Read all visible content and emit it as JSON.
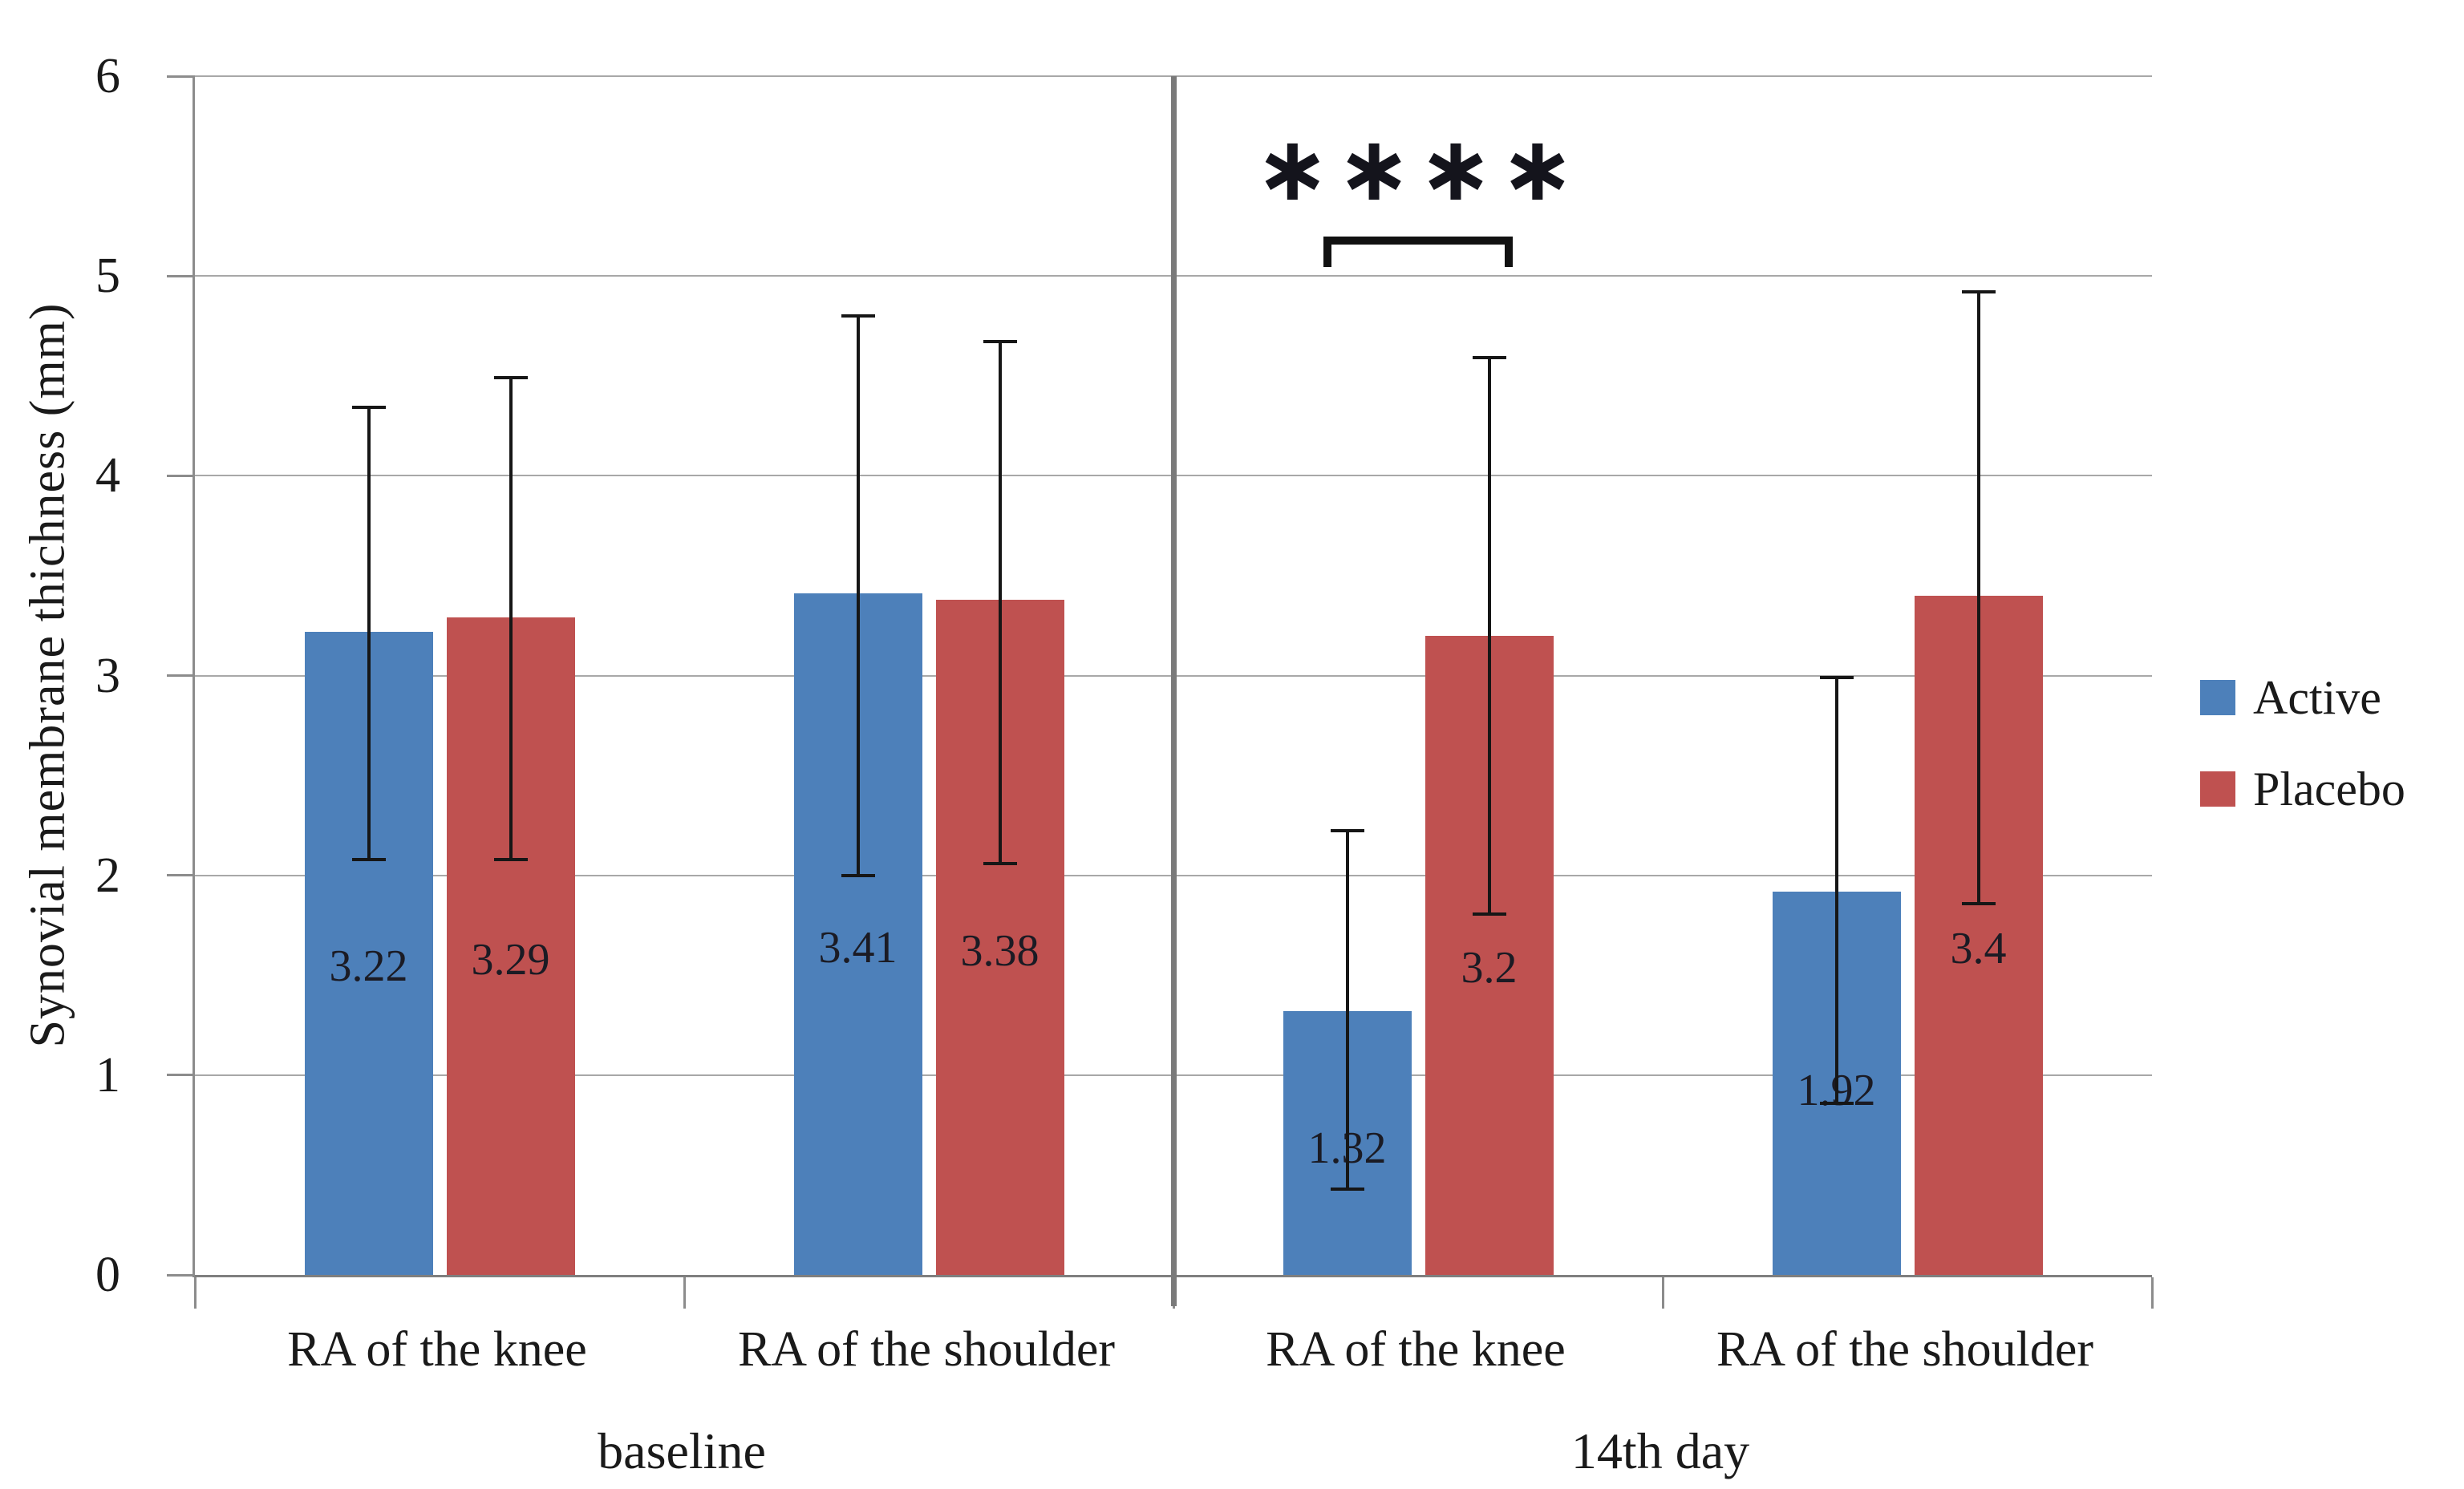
{
  "chart_data": {
    "type": "bar",
    "title": "",
    "ylabel": "Synovial membrane thichness (mm)",
    "xlabel": "",
    "ylim": [
      0,
      6
    ],
    "yticks": [
      0,
      1,
      2,
      3,
      4,
      5,
      6
    ],
    "grid": true,
    "legend_position": "right",
    "panel_divider": true,
    "series": [
      {
        "name": "Active",
        "color": "#4d80ba"
      },
      {
        "name": "Placebo",
        "color": "#bf5150"
      }
    ],
    "panels": [
      {
        "label": "baseline"
      },
      {
        "label": "14th day"
      }
    ],
    "groups": [
      {
        "panel": "baseline",
        "category": "RA of the knee",
        "bars": [
          {
            "series": "Active",
            "value": 3.22,
            "label": "3.22",
            "err_up": 1.13,
            "err_down": 1.15
          },
          {
            "series": "Placebo",
            "value": 3.29,
            "label": "3.29",
            "err_up": 1.21,
            "err_down": 1.22
          }
        ]
      },
      {
        "panel": "baseline",
        "category": "RA of the shoulder",
        "bars": [
          {
            "series": "Active",
            "value": 3.41,
            "label": "3.41",
            "err_up": 1.4,
            "err_down": 1.42
          },
          {
            "series": "Placebo",
            "value": 3.38,
            "label": "3.38",
            "err_up": 1.3,
            "err_down": 1.33
          }
        ]
      },
      {
        "panel": "14th day",
        "category": "RA of the knee",
        "bars": [
          {
            "series": "Active",
            "value": 1.32,
            "label": "1.32",
            "err_up": 0.91,
            "err_down": 0.9
          },
          {
            "series": "Placebo",
            "value": 3.2,
            "label": "3.2",
            "err_up": 1.4,
            "err_down": 1.4
          }
        ]
      },
      {
        "panel": "14th day",
        "category": "RA of the shoulder",
        "bars": [
          {
            "series": "Active",
            "value": 1.92,
            "label": "1.92",
            "err_up": 1.08,
            "err_down": 1.07
          },
          {
            "series": "Placebo",
            "value": 3.4,
            "label": "3.4",
            "err_up": 1.53,
            "err_down": 1.55
          }
        ]
      }
    ],
    "significance": {
      "label": "****",
      "group_index": 2
    },
    "colors": {
      "gridline": "#a8a8a8",
      "axis": "#8c8c8c",
      "divider": "#7a7a7a",
      "error_bar": "#161616",
      "data_label": "#1b1b24"
    }
  }
}
